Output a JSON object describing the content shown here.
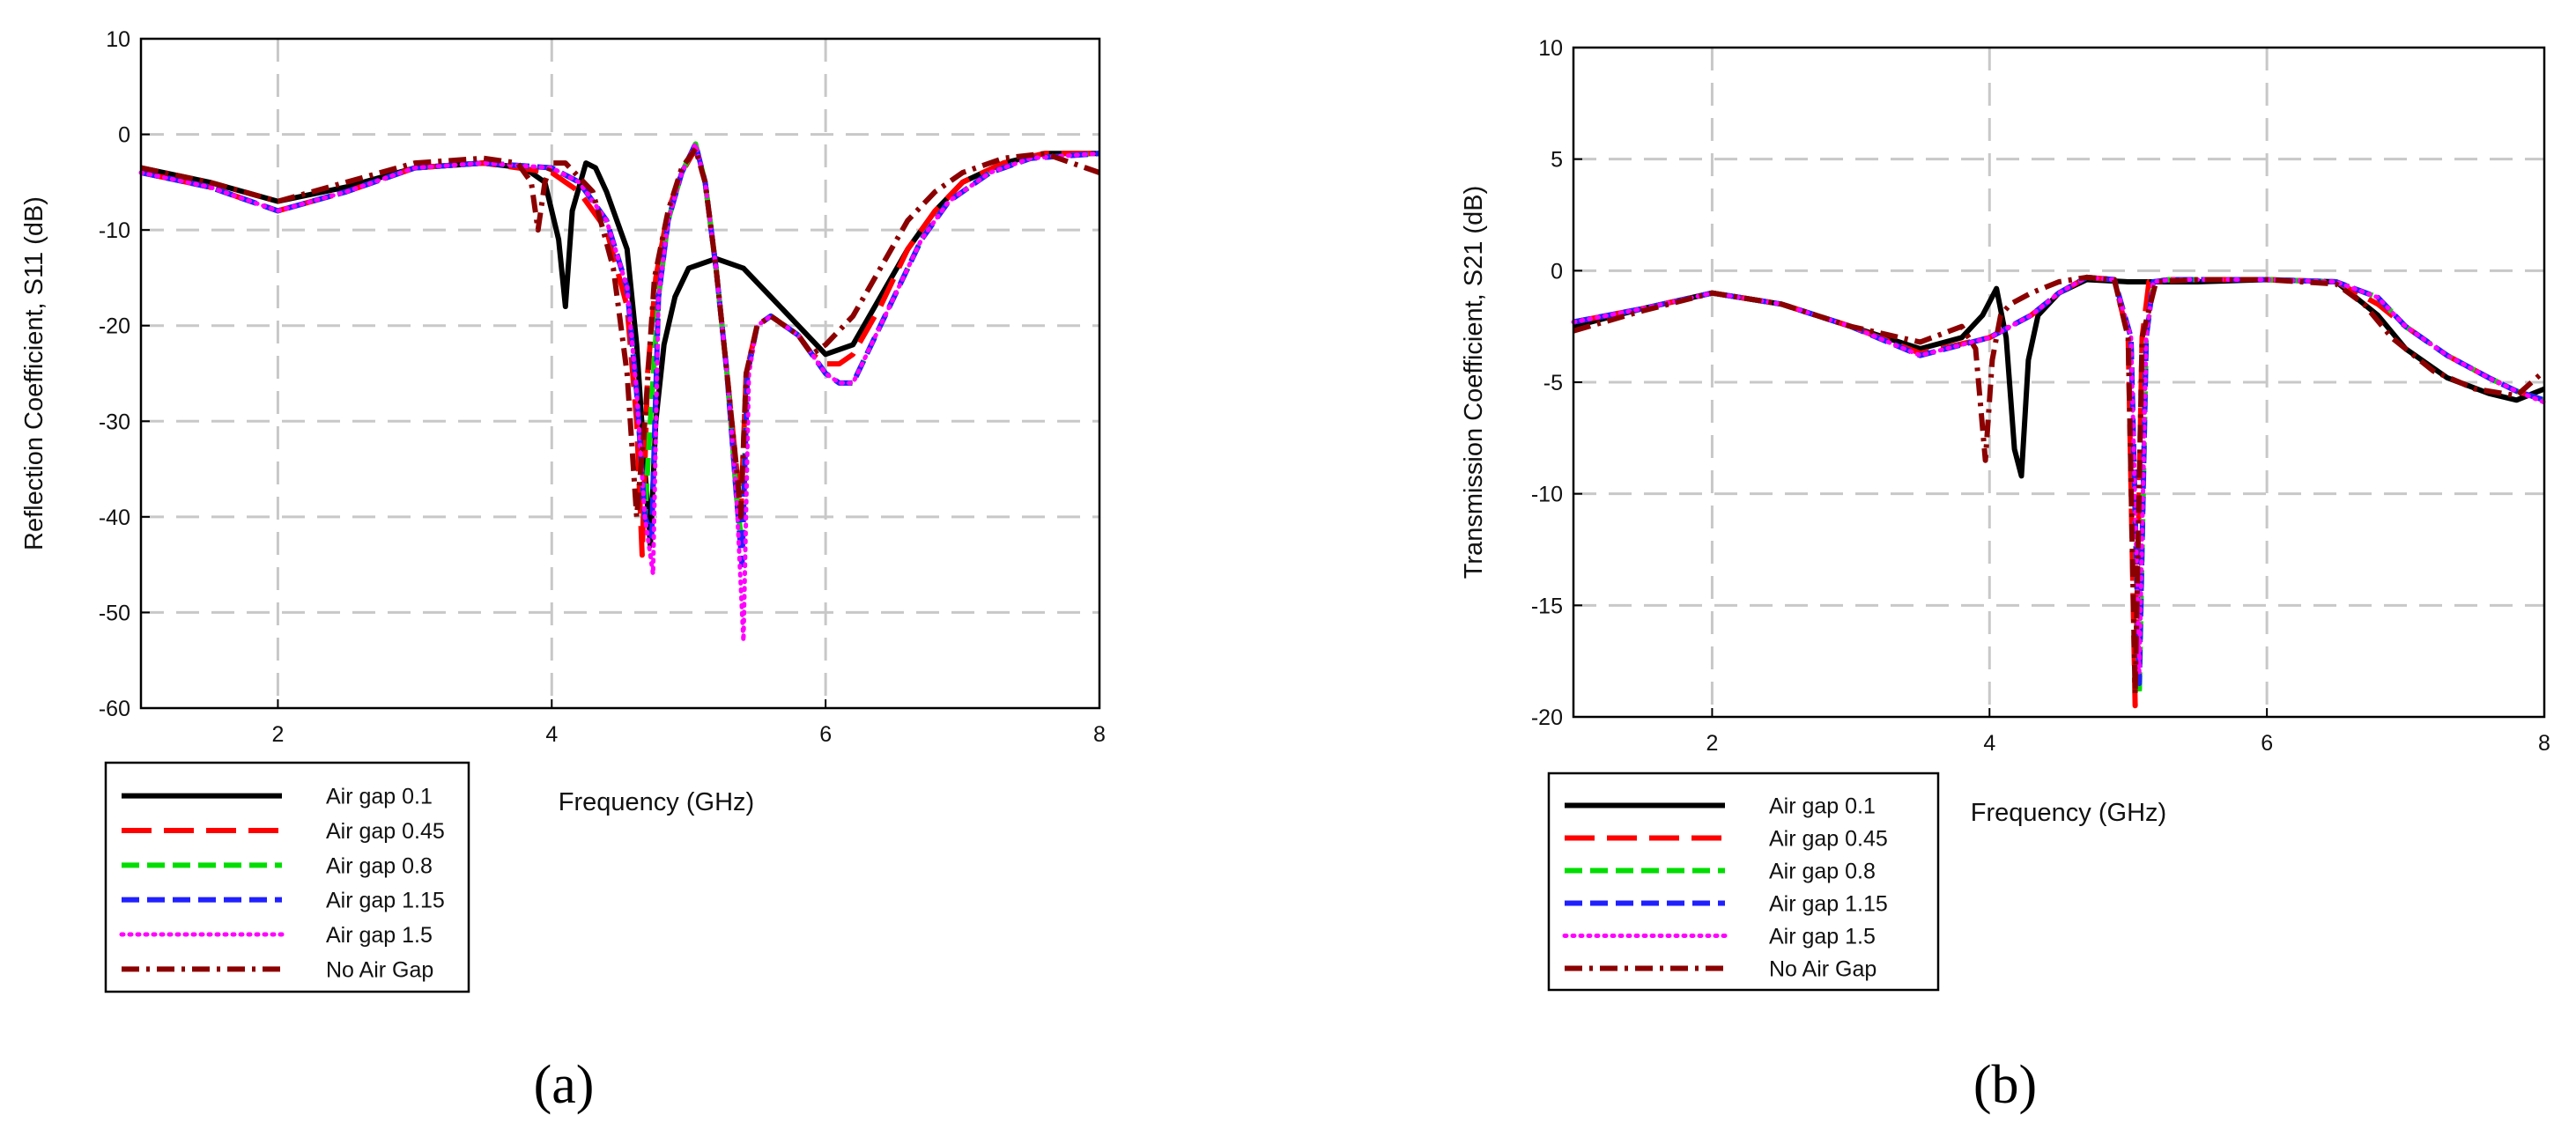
{
  "chart_data": [
    {
      "type": "line",
      "panel": "a",
      "caption": "(a)",
      "xlabel": "Frequency (GHz)",
      "ylabel": "Reflection Coefficient, S11 (dB)",
      "xlim": [
        1,
        8
      ],
      "ylim": [
        -60,
        10
      ],
      "xticks": [
        "2",
        "4",
        "6",
        "8"
      ],
      "yticks": [
        "10",
        "0",
        "-10",
        "-20",
        "-30",
        "-40",
        "-50",
        "-60"
      ],
      "grid": true,
      "legend_position": "below-left",
      "series": [
        {
          "name": "Air gap 0.1",
          "color": "#000000",
          "dash": "solid",
          "x": [
            1,
            1.5,
            2.0,
            2.5,
            3.0,
            3.5,
            3.8,
            3.95,
            4.05,
            4.1,
            4.15,
            4.25,
            4.32,
            4.4,
            4.55,
            4.62,
            4.68,
            4.72,
            4.76,
            4.82,
            4.9,
            5.0,
            5.2,
            5.4,
            5.6,
            5.8,
            6.0,
            6.2,
            6.4,
            6.6,
            6.8,
            7.0,
            7.3,
            7.6,
            8.0
          ],
          "y": [
            -3.5,
            -5,
            -7,
            -5.5,
            -3.5,
            -3,
            -3.5,
            -5,
            -11,
            -18,
            -8,
            -3,
            -3.5,
            -6,
            -12,
            -22,
            -35,
            -43,
            -30,
            -22,
            -17,
            -14,
            -13,
            -14,
            -17,
            -20,
            -23,
            -22,
            -17,
            -12,
            -8,
            -5,
            -3,
            -2,
            -2
          ]
        },
        {
          "name": "Air gap 0.45",
          "color": "#ff0000",
          "dash": "long-dash",
          "x": [
            1,
            1.5,
            2.0,
            2.5,
            3.0,
            3.5,
            4.0,
            4.2,
            4.4,
            4.55,
            4.62,
            4.66,
            4.7,
            4.76,
            4.85,
            4.95,
            5.05,
            5.12,
            5.2,
            5.28,
            5.35,
            5.38,
            5.42,
            5.5,
            5.6,
            5.7,
            5.8,
            5.9,
            6.0,
            6.1,
            6.2,
            6.4,
            6.6,
            6.8,
            7.0,
            7.3,
            7.6,
            8.0
          ],
          "y": [
            -4,
            -5.5,
            -8,
            -6,
            -3.5,
            -3,
            -4,
            -6,
            -10,
            -18,
            -30,
            -44,
            -25,
            -15,
            -8,
            -4,
            -1.5,
            -5,
            -14,
            -25,
            -35,
            -40,
            -25,
            -20,
            -19,
            -20,
            -21,
            -23,
            -24,
            -24,
            -23,
            -18,
            -12,
            -8,
            -5,
            -3,
            -2,
            -2
          ]
        },
        {
          "name": "Air gap 0.8",
          "color": "#00dd00",
          "dash": "dash",
          "x": [
            1,
            1.5,
            2.0,
            2.5,
            3.0,
            3.5,
            4.0,
            4.2,
            4.4,
            4.55,
            4.62,
            4.68,
            4.72,
            4.78,
            4.85,
            4.95,
            5.05,
            5.12,
            5.2,
            5.28,
            5.35,
            5.39,
            5.43,
            5.5,
            5.6,
            5.7,
            5.8,
            5.9,
            6.0,
            6.1,
            6.2,
            6.3,
            6.5,
            6.7,
            6.9,
            7.2,
            7.5,
            8.0
          ],
          "y": [
            -4,
            -5.5,
            -8,
            -6,
            -3.5,
            -3,
            -3.5,
            -5,
            -9,
            -16,
            -27,
            -40,
            -30,
            -17,
            -9,
            -4,
            -1,
            -5,
            -14,
            -25,
            -38,
            -43,
            -25,
            -20,
            -19,
            -20,
            -21,
            -23,
            -25,
            -26,
            -26,
            -23,
            -17,
            -11,
            -7,
            -4,
            -2.5,
            -2
          ]
        },
        {
          "name": "Air gap 1.15",
          "color": "#2020ff",
          "dash": "dash",
          "x": [
            1,
            1.5,
            2.0,
            2.5,
            3.0,
            3.5,
            4.0,
            4.2,
            4.4,
            4.55,
            4.62,
            4.68,
            4.73,
            4.78,
            4.85,
            4.95,
            5.05,
            5.12,
            5.2,
            5.28,
            5.35,
            5.39,
            5.43,
            5.5,
            5.6,
            5.7,
            5.8,
            5.9,
            6.0,
            6.1,
            6.2,
            6.3,
            6.5,
            6.7,
            6.9,
            7.2,
            7.5,
            8.0
          ],
          "y": [
            -4,
            -5.5,
            -8,
            -6,
            -3.5,
            -3,
            -3.5,
            -5,
            -9,
            -16,
            -27,
            -40,
            -42,
            -17,
            -9,
            -4,
            -1,
            -5,
            -14,
            -25,
            -38,
            -45,
            -25,
            -20,
            -19,
            -20,
            -21,
            -23,
            -25,
            -26,
            -26,
            -23,
            -17,
            -11,
            -7,
            -4,
            -2.5,
            -2
          ]
        },
        {
          "name": "Air gap 1.5",
          "color": "#ff00ff",
          "dash": "dot",
          "x": [
            1,
            1.5,
            2.0,
            2.5,
            3.0,
            3.5,
            4.0,
            4.2,
            4.4,
            4.55,
            4.62,
            4.68,
            4.74,
            4.78,
            4.85,
            4.95,
            5.05,
            5.12,
            5.2,
            5.28,
            5.35,
            5.4,
            5.44,
            5.5,
            5.6,
            5.7,
            5.8,
            5.9,
            6.0,
            6.1,
            6.2,
            6.3,
            6.5,
            6.7,
            6.9,
            7.2,
            7.5,
            8.0
          ],
          "y": [
            -4,
            -5.5,
            -8,
            -6,
            -3.5,
            -3,
            -3.5,
            -5,
            -9,
            -16,
            -27,
            -40,
            -46,
            -17,
            -9,
            -4,
            -1,
            -5,
            -14,
            -25,
            -38,
            -53,
            -25,
            -20,
            -19,
            -20,
            -21,
            -23,
            -25,
            -26,
            -26,
            -23,
            -17,
            -11,
            -7,
            -4,
            -2.5,
            -2
          ]
        },
        {
          "name": "No Air Gap",
          "color": "#8b0000",
          "dash": "dash-dot",
          "x": [
            1,
            1.5,
            2.0,
            2.5,
            3.0,
            3.5,
            3.75,
            3.85,
            3.9,
            3.95,
            4.0,
            4.1,
            4.3,
            4.45,
            4.55,
            4.62,
            4.68,
            4.75,
            4.85,
            4.95,
            5.05,
            5.12,
            5.2,
            5.28,
            5.35,
            5.38,
            5.42,
            5.5,
            5.6,
            5.7,
            5.8,
            5.9,
            6.0,
            6.2,
            6.4,
            6.6,
            6.8,
            7.0,
            7.3,
            7.6,
            8.0
          ],
          "y": [
            -3.5,
            -5,
            -7,
            -5,
            -3,
            -2.5,
            -3,
            -5,
            -10,
            -5,
            -3,
            -3,
            -6,
            -14,
            -25,
            -40,
            -30,
            -15,
            -8,
            -3.5,
            -1.5,
            -5,
            -14,
            -25,
            -35,
            -40,
            -25,
            -20,
            -19,
            -20,
            -21,
            -23,
            -22,
            -19,
            -14,
            -9,
            -6,
            -4,
            -2.5,
            -2,
            -4
          ]
        }
      ]
    },
    {
      "type": "line",
      "panel": "b",
      "caption": "(b)",
      "xlabel": "Frequency (GHz)",
      "ylabel": "Transmission Coefficient, S21 (dB)",
      "xlim": [
        1,
        8
      ],
      "ylim": [
        -20,
        10
      ],
      "xticks": [
        "2",
        "4",
        "6",
        "8"
      ],
      "yticks": [
        "10",
        "5",
        "0",
        "-5",
        "-10",
        "-15",
        "-20"
      ],
      "grid": true,
      "legend_position": "below-left",
      "series": [
        {
          "name": "Air gap 0.1",
          "color": "#000000",
          "dash": "solid",
          "x": [
            1,
            1.5,
            2.0,
            2.5,
            3.0,
            3.5,
            3.8,
            3.95,
            4.05,
            4.12,
            4.18,
            4.23,
            4.28,
            4.35,
            4.5,
            4.7,
            5.0,
            5.5,
            6.0,
            6.5,
            6.8,
            7.0,
            7.3,
            7.6,
            7.8,
            8.0
          ],
          "y": [
            -2.5,
            -1.7,
            -1.0,
            -1.5,
            -2.5,
            -3.5,
            -3.0,
            -2.0,
            -0.8,
            -3.0,
            -8.0,
            -9.2,
            -4.0,
            -2.0,
            -1.0,
            -0.4,
            -0.5,
            -0.5,
            -0.4,
            -0.5,
            -2.0,
            -3.5,
            -4.8,
            -5.5,
            -5.8,
            -5.3
          ]
        },
        {
          "name": "Air gap 0.45",
          "color": "#ff0000",
          "dash": "long-dash",
          "x": [
            1,
            1.5,
            2.0,
            2.5,
            3.0,
            3.5,
            4.0,
            4.3,
            4.5,
            4.7,
            4.9,
            5.0,
            5.05,
            5.1,
            5.15,
            5.3,
            5.5,
            6.0,
            6.5,
            6.8,
            7.0,
            7.3,
            7.6,
            7.8,
            8.0
          ],
          "y": [
            -2.3,
            -1.7,
            -1.0,
            -1.5,
            -2.5,
            -3.7,
            -3.0,
            -2.0,
            -1.0,
            -0.3,
            -0.4,
            -3.0,
            -19.5,
            -3.0,
            -0.5,
            -0.4,
            -0.4,
            -0.4,
            -0.5,
            -1.5,
            -2.5,
            -3.8,
            -4.8,
            -5.4,
            -5.8
          ]
        },
        {
          "name": "Air gap 0.8",
          "color": "#00dd00",
          "dash": "dash",
          "x": [
            1,
            1.5,
            2.0,
            2.5,
            3.0,
            3.5,
            4.0,
            4.3,
            4.5,
            4.7,
            4.9,
            5.02,
            5.08,
            5.13,
            5.18,
            5.3,
            5.5,
            6.0,
            6.5,
            6.8,
            7.0,
            7.3,
            7.6,
            7.8,
            8.0
          ],
          "y": [
            -2.3,
            -1.7,
            -1.0,
            -1.5,
            -2.5,
            -3.8,
            -3.0,
            -2.0,
            -1.0,
            -0.3,
            -0.4,
            -3.0,
            -19.0,
            -3.0,
            -0.5,
            -0.4,
            -0.4,
            -0.4,
            -0.5,
            -1.2,
            -2.5,
            -3.8,
            -4.8,
            -5.4,
            -5.8
          ]
        },
        {
          "name": "Air gap 1.15",
          "color": "#2020ff",
          "dash": "dash",
          "x": [
            1,
            1.5,
            2.0,
            2.5,
            3.0,
            3.5,
            4.0,
            4.3,
            4.5,
            4.7,
            4.9,
            5.02,
            5.08,
            5.13,
            5.18,
            5.3,
            5.5,
            6.0,
            6.5,
            6.8,
            7.0,
            7.3,
            7.6,
            7.8,
            8.0
          ],
          "y": [
            -2.3,
            -1.7,
            -1.0,
            -1.5,
            -2.5,
            -3.8,
            -3.0,
            -2.0,
            -1.0,
            -0.3,
            -0.4,
            -3.0,
            -18.5,
            -3.0,
            -0.5,
            -0.4,
            -0.4,
            -0.4,
            -0.5,
            -1.2,
            -2.5,
            -3.8,
            -4.8,
            -5.4,
            -5.8
          ]
        },
        {
          "name": "Air gap 1.5",
          "color": "#ff00ff",
          "dash": "dot",
          "x": [
            1,
            1.5,
            2.0,
            2.5,
            3.0,
            3.5,
            4.0,
            4.3,
            4.5,
            4.7,
            4.9,
            5.02,
            5.08,
            5.13,
            5.18,
            5.3,
            5.5,
            6.0,
            6.5,
            6.8,
            7.0,
            7.3,
            7.6,
            7.8,
            8.0
          ],
          "y": [
            -2.3,
            -1.7,
            -1.0,
            -1.5,
            -2.5,
            -3.8,
            -3.0,
            -2.0,
            -1.0,
            -0.3,
            -0.4,
            -3.0,
            -18.0,
            -3.0,
            -0.5,
            -0.4,
            -0.4,
            -0.4,
            -0.5,
            -1.2,
            -2.5,
            -3.8,
            -4.8,
            -5.4,
            -5.9
          ]
        },
        {
          "name": "No Air Gap",
          "color": "#8b0000",
          "dash": "dash-dot",
          "x": [
            1,
            1.5,
            2.0,
            2.5,
            3.0,
            3.5,
            3.8,
            3.9,
            3.97,
            4.02,
            4.08,
            4.15,
            4.3,
            4.5,
            4.7,
            4.9,
            5.0,
            5.05,
            5.1,
            5.2,
            5.5,
            6.0,
            6.5,
            6.7,
            6.9,
            7.2,
            7.5,
            7.8,
            8.0
          ],
          "y": [
            -2.7,
            -1.8,
            -1.0,
            -1.5,
            -2.5,
            -3.2,
            -2.5,
            -3.5,
            -8.5,
            -4.0,
            -2.0,
            -1.5,
            -1.0,
            -0.5,
            -0.3,
            -0.4,
            -3.0,
            -19.0,
            -3.0,
            -0.5,
            -0.4,
            -0.4,
            -0.6,
            -1.5,
            -3.0,
            -4.5,
            -5.3,
            -5.6,
            -4.5
          ]
        }
      ]
    }
  ]
}
